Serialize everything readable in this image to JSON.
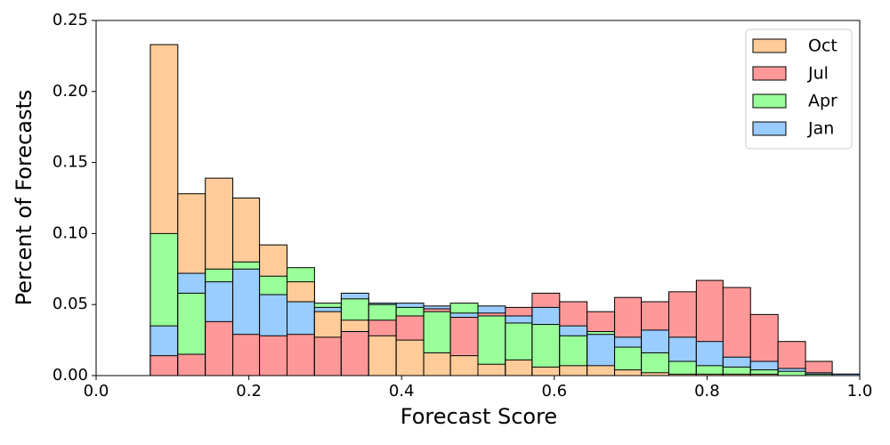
{
  "chart_data": {
    "type": "histogram",
    "xlabel": "Forecast Score",
    "ylabel": "Percent of Forecasts",
    "bins": [
      0.071,
      0.107,
      0.143,
      0.179,
      0.214,
      0.25,
      0.286,
      0.321,
      0.357,
      0.393,
      0.429,
      0.464,
      0.5,
      0.536,
      0.571,
      0.607,
      0.643,
      0.679,
      0.714,
      0.75,
      0.786,
      0.821,
      0.857,
      0.893,
      0.929,
      0.964,
      1.0
    ],
    "series": [
      {
        "name": "Oct",
        "color": "#ffcc99",
        "values": [
          0.233,
          0.128,
          0.139,
          0.125,
          0.092,
          0.066,
          0.045,
          0.039,
          0.028,
          0.025,
          0.016,
          0.014,
          0.008,
          0.011,
          0.006,
          0.007,
          0.007,
          0.004,
          0.002,
          0.001,
          0.001,
          0.001,
          0.001,
          0.0,
          0.0,
          0.0
        ]
      },
      {
        "name": "Jul",
        "color": "#ff9999",
        "values": [
          0.014,
          0.015,
          0.038,
          0.029,
          0.028,
          0.029,
          0.027,
          0.031,
          0.039,
          0.042,
          0.047,
          0.041,
          0.044,
          0.048,
          0.058,
          0.052,
          0.045,
          0.055,
          0.052,
          0.059,
          0.067,
          0.062,
          0.043,
          0.024,
          0.01,
          0.001
        ]
      },
      {
        "name": "Apr",
        "color": "#99ff99",
        "values": [
          0.1,
          0.058,
          0.075,
          0.08,
          0.07,
          0.076,
          0.051,
          0.054,
          0.05,
          0.048,
          0.045,
          0.051,
          0.042,
          0.037,
          0.036,
          0.028,
          0.031,
          0.02,
          0.016,
          0.01,
          0.007,
          0.006,
          0.004,
          0.003,
          0.001,
          0.001
        ]
      },
      {
        "name": "Jan",
        "color": "#99ccff",
        "values": [
          0.035,
          0.072,
          0.066,
          0.075,
          0.057,
          0.052,
          0.048,
          0.058,
          0.051,
          0.051,
          0.049,
          0.044,
          0.049,
          0.042,
          0.048,
          0.035,
          0.029,
          0.027,
          0.032,
          0.027,
          0.024,
          0.013,
          0.01,
          0.005,
          0.002,
          0.001
        ]
      }
    ],
    "xlim": [
      0,
      1
    ],
    "ylim": [
      0,
      0.25
    ],
    "xticks": [
      {
        "value": 0,
        "label": "0.0"
      },
      0.2,
      0.4,
      0.6,
      0.8,
      {
        "value": 1,
        "label": "1.0"
      }
    ],
    "yticks": [
      {
        "value": 0,
        "label": "0.00"
      },
      {
        "value": 0.05,
        "label": "0.05"
      },
      {
        "value": 0.1,
        "label": "0.10"
      },
      {
        "value": 0.15,
        "label": "0.15"
      },
      {
        "value": 0.2,
        "label": "0.20"
      },
      {
        "value": 0.25,
        "label": "0.25"
      }
    ],
    "legend": "upper right"
  }
}
